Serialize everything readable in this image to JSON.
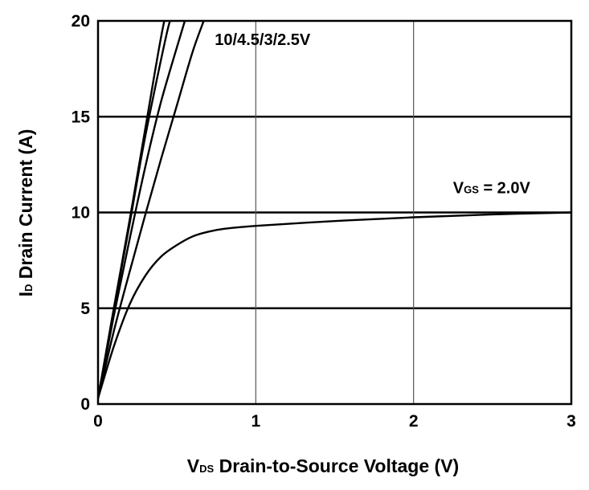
{
  "chart_data": {
    "type": "line",
    "xlabel": {
      "main": "V",
      "sub": "DS",
      "rest": " Drain-to-Source Voltage (V)"
    },
    "ylabel": {
      "main": "I",
      "sub": "D",
      "rest": " Drain Current (A)"
    },
    "xlim": [
      0,
      3
    ],
    "ylim": [
      0,
      20
    ],
    "x_ticks": [
      "0",
      "1",
      "2",
      "3"
    ],
    "y_ticks": [
      "0",
      "5",
      "10",
      "15",
      "20"
    ],
    "grid": true,
    "series": [
      {
        "vgs": 10,
        "x": [
          0,
          0.1,
          0.2,
          0.3,
          0.42,
          0.46
        ],
        "y": [
          0.3,
          5.0,
          9.6,
          14.4,
          20.0,
          20.0
        ]
      },
      {
        "vgs": 4.5,
        "x": [
          0,
          0.1,
          0.2,
          0.3,
          0.44,
          0.47
        ],
        "y": [
          0.3,
          4.9,
          9.4,
          14.0,
          19.5,
          20.0
        ]
      },
      {
        "vgs": 3,
        "x": [
          0,
          0.1,
          0.2,
          0.3,
          0.4,
          0.55
        ],
        "y": [
          0.3,
          4.6,
          8.6,
          12.4,
          15.8,
          20.0
        ]
      },
      {
        "vgs": 2.5,
        "x": [
          0,
          0.1,
          0.2,
          0.3,
          0.4,
          0.5,
          0.6,
          0.67
        ],
        "y": [
          0.3,
          3.8,
          6.9,
          9.9,
          12.8,
          15.6,
          18.4,
          20.0
        ]
      },
      {
        "vgs": 2.0,
        "x": [
          0,
          0.1,
          0.2,
          0.3,
          0.4,
          0.5,
          0.6,
          0.7,
          0.8,
          1.0,
          1.5,
          2.0,
          2.5,
          3.0
        ],
        "y": [
          0.3,
          3.0,
          5.2,
          6.7,
          7.7,
          8.3,
          8.75,
          9.0,
          9.15,
          9.3,
          9.55,
          9.75,
          9.9,
          10.0
        ]
      }
    ],
    "annotations": [
      {
        "text": "10/4.5/3/2.5V",
        "x": 0.74,
        "y": 18.75
      },
      {
        "main": "V",
        "sub": "GS",
        "rest": " = 2.0V",
        "x": 2.25,
        "y": 11.0
      }
    ]
  }
}
